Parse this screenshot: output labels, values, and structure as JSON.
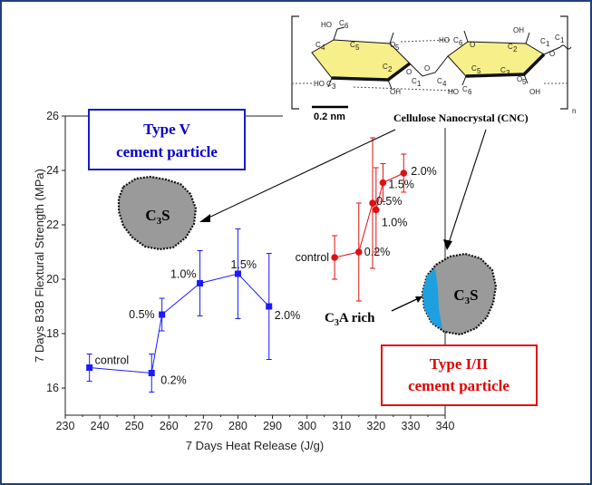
{
  "chart_data": {
    "type": "scatter",
    "xlabel": "7 Days Heat Release (J/g)",
    "ylabel": "7 Days B3B Flextural Strength (MPa)",
    "xlim": [
      230,
      340
    ],
    "ylim": [
      15,
      26
    ],
    "xticks": [
      230,
      240,
      250,
      260,
      270,
      280,
      290,
      300,
      310,
      320,
      330,
      340
    ],
    "yticks": [
      16,
      18,
      20,
      22,
      24,
      26
    ],
    "grid": false,
    "series": [
      {
        "color": "#1a1aff",
        "marker": "square",
        "points": [
          {
            "x": 237,
            "y": 16.75,
            "err": 0.5,
            "label": "control"
          },
          {
            "x": 255,
            "y": 16.55,
            "err": 0.7,
            "label": "0.2%"
          },
          {
            "x": 258,
            "y": 18.7,
            "err": 0.6,
            "label": "0.5%"
          },
          {
            "x": 269,
            "y": 19.85,
            "err": 1.2,
            "label": "1.0%"
          },
          {
            "x": 280,
            "y": 20.2,
            "err": 1.65,
            "label": "1.5%"
          },
          {
            "x": 289,
            "y": 19.0,
            "err": 1.95,
            "label": "2.0%"
          }
        ]
      },
      {
        "color": "#e01010",
        "marker": "circle",
        "points": [
          {
            "x": 308,
            "y": 20.8,
            "err": 0.8,
            "label": "control"
          },
          {
            "x": 315,
            "y": 21.0,
            "err": 1.8,
            "label": "0.2%"
          },
          {
            "x": 319,
            "y": 22.8,
            "err": 2.4,
            "label": "0.5%"
          },
          {
            "x": 320,
            "y": 22.55,
            "err": 1.55,
            "label": "1.0%"
          },
          {
            "x": 322,
            "y": 23.55,
            "err": 0.7,
            "label": "1.5%"
          },
          {
            "x": 328,
            "y": 23.9,
            "err": 0.7,
            "label": "2.0%"
          }
        ]
      }
    ]
  },
  "annotations": {
    "type_v_line1": "Type V",
    "type_v_line2": "cement particle",
    "type_v_color": "#0000cc",
    "type_i_line1": "Type I/II",
    "type_i_line2": "cement particle",
    "type_i_color": "#e00000",
    "c3s_main": "C",
    "c3s_sub": "3",
    "c3s_tail": "S",
    "c3a_main": "C",
    "c3a_sub": "3",
    "c3a_tail": "A rich",
    "cnc_label": "Cellulose Nanocrystal (CNC)",
    "scale_label": "0.2 nm",
    "repeat_n": "n",
    "particle_color": "#9a9a9a",
    "c3a_color": "#1ea0e0",
    "ring_fill": "#f7f08a",
    "chem_labels": [
      "HO",
      "C",
      "6",
      "C",
      "4",
      "C",
      "5",
      "O",
      "5",
      "HO",
      "C",
      "3",
      "C",
      "2",
      "OH",
      "O",
      "C",
      "1",
      "O",
      "C",
      "4",
      "HO",
      "C",
      "6",
      "O",
      "HO",
      "C",
      "6",
      "C",
      "5",
      "C",
      "2",
      "OH",
      "C",
      "3",
      "O",
      "5",
      "C",
      "1",
      "OH",
      "O",
      "C",
      "1"
    ]
  },
  "axis_text": {
    "x": "7 Days Heat Release (J/g)",
    "y": "7 Days B3B Flextural Strength (MPa)"
  }
}
